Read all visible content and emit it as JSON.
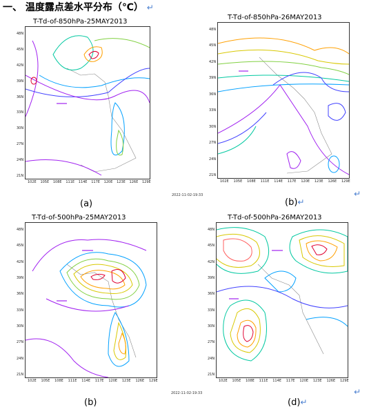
{
  "heading": {
    "text": "一、 温度露点差水平分布（℃）",
    "return_mark": "↵"
  },
  "return_mark": "↵",
  "panels": [
    {
      "title": "T-Td-of-850hPa-25MAY2013",
      "caption": "(a)"
    },
    {
      "title": "T-Td-of-850hPa-26MAY2013",
      "caption": "(b)"
    },
    {
      "title": "T-Td-of-500hPa-25MAY2013",
      "caption": "(b)"
    },
    {
      "title": "T-Td-of-500hPa-26MAY2013",
      "caption": "(d)"
    }
  ],
  "lat_labels": [
    "48N",
    "45N",
    "42N",
    "39N",
    "36N",
    "33N",
    "30N",
    "27N",
    "24N",
    "21N"
  ],
  "lon_labels": [
    "102E",
    "105E",
    "108E",
    "111E",
    "114E",
    "117E",
    "120E",
    "123E",
    "126E",
    "129E"
  ],
  "timestamps": [
    "2022-11-02-19:33",
    "2022-11-02-19:33"
  ],
  "contour_colors": {
    "c5": "#a020f0",
    "c10": "#4040ff",
    "c15": "#00a0ff",
    "c20": "#00c8a0",
    "c25": "#80d040",
    "c30": "#d8c800",
    "c35": "#ffa000",
    "c40": "#ff6060",
    "c45": "#e00030"
  }
}
